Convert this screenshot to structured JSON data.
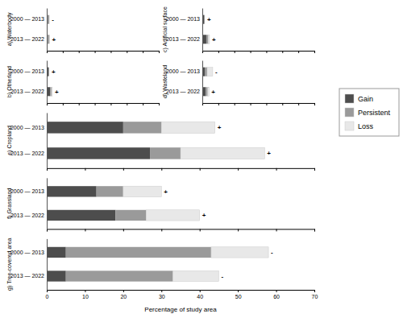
{
  "chart_data": [
    {
      "type": "bar",
      "orientation": "horizontal",
      "stacked": true,
      "ylabel": "a) Waterbody",
      "categories": [
        "2000 — 2013",
        "2013 — 2022"
      ],
      "series": [
        {
          "name": "Gain",
          "color": "#4d4d4d",
          "values": [
            0.3,
            0.7
          ]
        },
        {
          "name": "Persistent",
          "color": "#9a9a9a",
          "values": [
            1.3,
            1.0
          ]
        },
        {
          "name": "Loss",
          "color": "#e8e8e8",
          "values": [
            0.0,
            0.0
          ]
        }
      ],
      "annotations": [
        "-",
        "+"
      ],
      "xlim": [
        0,
        70
      ],
      "xticks": [
        0,
        10,
        20,
        30,
        40,
        50,
        60,
        70
      ],
      "tick_labels": "y",
      "legend": "right"
    },
    {
      "type": "bar",
      "orientation": "horizontal",
      "stacked": true,
      "ylabel": "c) Artificial surface",
      "categories": [
        "2000 — 2013",
        "2013 — 2022"
      ],
      "series": [
        {
          "name": "Gain",
          "color": "#4d4d4d",
          "values": [
            1.0,
            2.5
          ]
        },
        {
          "name": "Persistent",
          "color": "#9a9a9a",
          "values": [
            0.5,
            1.2
          ]
        },
        {
          "name": "Loss",
          "color": "#e8e8e8",
          "values": [
            0.0,
            0.8
          ]
        }
      ],
      "annotations": [
        "+",
        "+"
      ],
      "xlim": [
        0,
        70
      ],
      "xticks": [
        0,
        10,
        20,
        30,
        40,
        50,
        60,
        70
      ],
      "tick_labels": "y"
    },
    {
      "type": "bar",
      "orientation": "horizontal",
      "stacked": true,
      "ylabel": "b) Otherland",
      "categories": [
        "2000 — 2013",
        "2013 — 2022"
      ],
      "series": [
        {
          "name": "Gain",
          "color": "#4d4d4d",
          "values": [
            1.0,
            2.2
          ]
        },
        {
          "name": "Persistent",
          "color": "#9a9a9a",
          "values": [
            0.5,
            0.8
          ]
        },
        {
          "name": "Loss",
          "color": "#e8e8e8",
          "values": [
            0.0,
            0.5
          ]
        }
      ],
      "annotations": [
        "+",
        "+"
      ],
      "xlim": [
        0,
        70
      ],
      "xticks": [
        0,
        10,
        20,
        30,
        40,
        50,
        60,
        70
      ],
      "tick_labels": "y"
    },
    {
      "type": "bar",
      "orientation": "horizontal",
      "stacked": true,
      "ylabel": "d) Wasteland",
      "categories": [
        "2000 — 2013",
        "2013 — 2022"
      ],
      "series": [
        {
          "name": "Gain",
          "color": "#4d4d4d",
          "values": [
            1.5,
            2.2
          ]
        },
        {
          "name": "Persistent",
          "color": "#9a9a9a",
          "values": [
            1.5,
            1.2
          ]
        },
        {
          "name": "Loss",
          "color": "#e8e8e8",
          "values": [
            3.5,
            0.8
          ]
        }
      ],
      "annotations": [
        "-",
        "+"
      ],
      "xlim": [
        0,
        70
      ],
      "xticks": [
        0,
        10,
        20,
        30,
        40,
        50,
        60,
        70
      ],
      "tick_labels": "y"
    },
    {
      "type": "bar",
      "orientation": "horizontal",
      "stacked": true,
      "ylabel": "e) Cropland",
      "categories": [
        "2000 — 2013",
        "2013 — 2022"
      ],
      "series": [
        {
          "name": "Gain",
          "color": "#4d4d4d",
          "values": [
            20.0,
            27.0
          ]
        },
        {
          "name": "Persistent",
          "color": "#9a9a9a",
          "values": [
            10.0,
            8.0
          ]
        },
        {
          "name": "Loss",
          "color": "#e8e8e8",
          "values": [
            14.0,
            22.0
          ]
        }
      ],
      "annotations": [
        "+",
        "+"
      ],
      "xlim": [
        0,
        70
      ],
      "xticks": [
        0,
        10,
        20,
        30,
        40,
        50,
        60,
        70
      ],
      "tick_labels": "y"
    },
    {
      "type": "bar",
      "orientation": "horizontal",
      "stacked": true,
      "ylabel": "f) Grassland",
      "categories": [
        "2000 — 2013",
        "2013 — 2022"
      ],
      "series": [
        {
          "name": "Gain",
          "color": "#4d4d4d",
          "values": [
            13.0,
            18.0
          ]
        },
        {
          "name": "Persistent",
          "color": "#9a9a9a",
          "values": [
            7.0,
            8.0
          ]
        },
        {
          "name": "Loss",
          "color": "#e8e8e8",
          "values": [
            10.0,
            14.0
          ]
        }
      ],
      "annotations": [
        "+",
        "+"
      ],
      "xlim": [
        0,
        70
      ],
      "xticks": [
        0,
        10,
        20,
        30,
        40,
        50,
        60,
        70
      ],
      "tick_labels": "y"
    },
    {
      "type": "bar",
      "orientation": "horizontal",
      "stacked": true,
      "ylabel": "g) Tree-covered area",
      "xlabel": "Percentage of study area",
      "categories": [
        "2000 — 2013",
        "2013 — 2022"
      ],
      "series": [
        {
          "name": "Gain",
          "color": "#4d4d4d",
          "values": [
            5.0,
            5.0
          ]
        },
        {
          "name": "Persistent",
          "color": "#9a9a9a",
          "values": [
            38.0,
            28.0
          ]
        },
        {
          "name": "Loss",
          "color": "#e8e8e8",
          "values": [
            15.0,
            12.0
          ]
        }
      ],
      "annotations": [
        "-",
        "-"
      ],
      "xlim": [
        0,
        70
      ],
      "xticks": [
        0,
        10,
        20,
        30,
        40,
        50,
        60,
        70
      ]
    }
  ]
}
